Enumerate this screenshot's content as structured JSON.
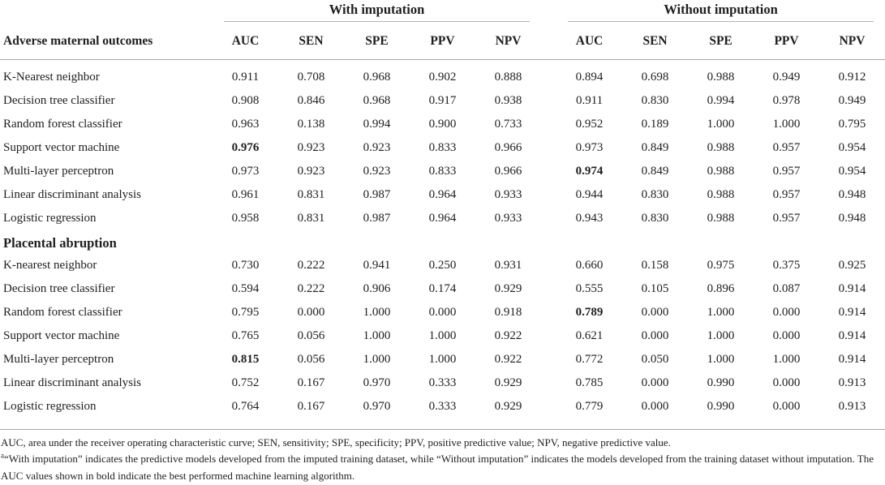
{
  "table": {
    "stub_header": "Adverse maternal outcomes",
    "group_headers": [
      {
        "label": "With imputation"
      },
      {
        "label": "Without imputation"
      }
    ],
    "metric_headers": [
      "AUC",
      "SEN",
      "SPE",
      "PPV",
      "NPV"
    ],
    "sections": [
      {
        "label": null,
        "rows": [
          {
            "label": "K-Nearest neighbor",
            "values": [
              "0.911",
              "0.708",
              "0.968",
              "0.902",
              "0.888",
              "0.894",
              "0.698",
              "0.988",
              "0.949",
              "0.912"
            ],
            "bold": []
          },
          {
            "label": "Decision tree classifier",
            "values": [
              "0.908",
              "0.846",
              "0.968",
              "0.917",
              "0.938",
              "0.911",
              "0.830",
              "0.994",
              "0.978",
              "0.949"
            ],
            "bold": []
          },
          {
            "label": "Random forest classifier",
            "values": [
              "0.963",
              "0.138",
              "0.994",
              "0.900",
              "0.733",
              "0.952",
              "0.189",
              "1.000",
              "1.000",
              "0.795"
            ],
            "bold": []
          },
          {
            "label": "Support vector machine",
            "values": [
              "0.976",
              "0.923",
              "0.923",
              "0.833",
              "0.966",
              "0.973",
              "0.849",
              "0.988",
              "0.957",
              "0.954"
            ],
            "bold": [
              0
            ]
          },
          {
            "label": "Multi-layer perceptron",
            "values": [
              "0.973",
              "0.923",
              "0.923",
              "0.833",
              "0.966",
              "0.974",
              "0.849",
              "0.988",
              "0.957",
              "0.954"
            ],
            "bold": [
              5
            ]
          },
          {
            "label": "Linear discriminant analysis",
            "values": [
              "0.961",
              "0.831",
              "0.987",
              "0.964",
              "0.933",
              "0.944",
              "0.830",
              "0.988",
              "0.957",
              "0.948"
            ],
            "bold": []
          },
          {
            "label": "Logistic regression",
            "values": [
              "0.958",
              "0.831",
              "0.987",
              "0.964",
              "0.933",
              "0.943",
              "0.830",
              "0.988",
              "0.957",
              "0.948"
            ],
            "bold": []
          }
        ]
      },
      {
        "label": "Placental abruption",
        "rows": [
          {
            "label": "K-nearest neighbor",
            "values": [
              "0.730",
              "0.222",
              "0.941",
              "0.250",
              "0.931",
              "0.660",
              "0.158",
              "0.975",
              "0.375",
              "0.925"
            ],
            "bold": []
          },
          {
            "label": "Decision tree classifier",
            "values": [
              "0.594",
              "0.222",
              "0.906",
              "0.174",
              "0.929",
              "0.555",
              "0.105",
              "0.896",
              "0.087",
              "0.914"
            ],
            "bold": []
          },
          {
            "label": "Random forest classifier",
            "values": [
              "0.795",
              "0.000",
              "1.000",
              "0.000",
              "0.918",
              "0.789",
              "0.000",
              "1.000",
              "0.000",
              "0.914"
            ],
            "bold": [
              5
            ]
          },
          {
            "label": "Support vector machine",
            "values": [
              "0.765",
              "0.056",
              "1.000",
              "1.000",
              "0.922",
              "0.621",
              "0.000",
              "1.000",
              "0.000",
              "0.914"
            ],
            "bold": []
          },
          {
            "label": "Multi-layer perceptron",
            "values": [
              "0.815",
              "0.056",
              "1.000",
              "1.000",
              "0.922",
              "0.772",
              "0.050",
              "1.000",
              "1.000",
              "0.914"
            ],
            "bold": [
              0
            ]
          },
          {
            "label": "Linear discriminant analysis",
            "values": [
              "0.752",
              "0.167",
              "0.970",
              "0.333",
              "0.929",
              "0.785",
              "0.000",
              "0.990",
              "0.000",
              "0.913"
            ],
            "bold": []
          },
          {
            "label": "Logistic regression",
            "values": [
              "0.764",
              "0.167",
              "0.970",
              "0.333",
              "0.929",
              "0.779",
              "0.000",
              "0.990",
              "0.000",
              "0.913"
            ],
            "bold": []
          }
        ]
      }
    ]
  },
  "footnotes": [
    {
      "marker": "",
      "text": "AUC, area under the receiver operating characteristic curve; SEN, sensitivity; SPE, specificity; PPV, positive predictive value; NPV, negative predictive value."
    },
    {
      "marker": "a",
      "text": "“With imputation” indicates the predictive models developed from the imputed training dataset, while “Without imputation” indicates the models developed from the training dataset without imputation. The AUC values shown in bold indicate the best performed machine learning algorithm."
    }
  ],
  "colors": {
    "text": "#1e1e1e",
    "rule_dark": "#a6a6a6",
    "rule_light": "#b5b5b5",
    "background": "#ffffff"
  }
}
